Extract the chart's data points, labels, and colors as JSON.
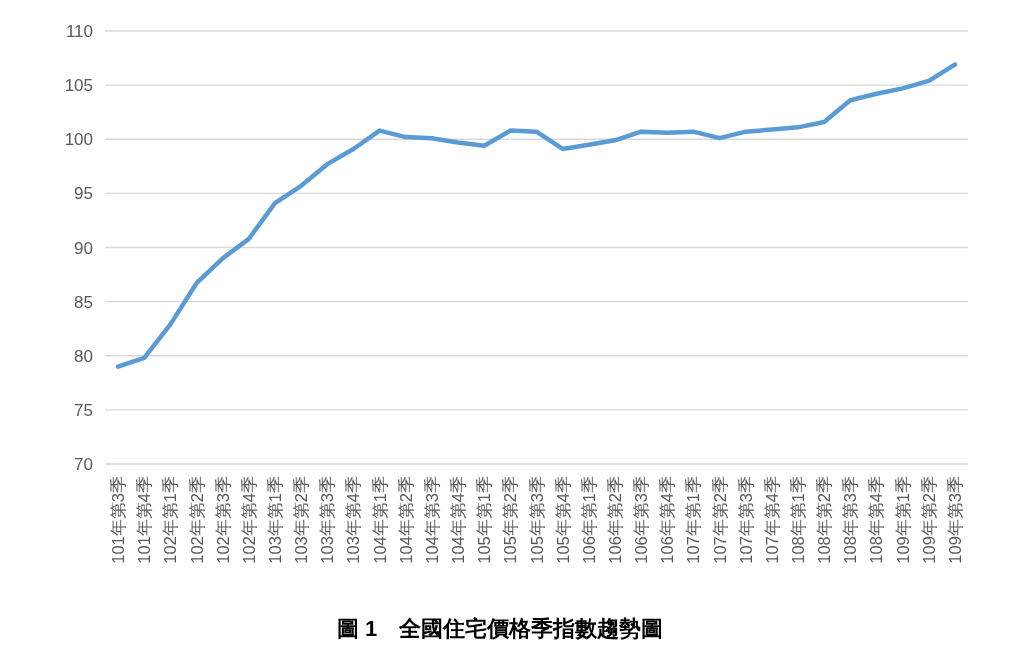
{
  "chart_data": {
    "type": "line",
    "title": "圖 1　全國住宅價格季指數趨勢圖",
    "categories": [
      "101年第3季",
      "101年第4季",
      "102年第1季",
      "102年第2季",
      "102年第3季",
      "102年第4季",
      "103年第1季",
      "103年第2季",
      "103年第3季",
      "103年第4季",
      "104年第1季",
      "104年第2季",
      "104年第3季",
      "104年第4季",
      "105年第1季",
      "105年第2季",
      "105年第3季",
      "105年第4季",
      "106年第1季",
      "106年第2季",
      "106年第3季",
      "106年第4季",
      "107年第1季",
      "107年第2季",
      "107年第3季",
      "107年第4季",
      "108年第1季",
      "108年第2季",
      "108年第3季",
      "108年第4季",
      "109年第1季",
      "109年第2季",
      "109年第3季"
    ],
    "series": [
      {
        "color": "#5b9bd5",
        "values": [
          79.0,
          79.8,
          82.9,
          86.7,
          89.0,
          90.8,
          94.1,
          95.7,
          97.7,
          99.1,
          100.8,
          100.2,
          100.1,
          99.7,
          99.4,
          100.8,
          100.7,
          99.1,
          99.5,
          99.9,
          100.7,
          100.6,
          100.7,
          100.1,
          100.7,
          100.9,
          101.1,
          101.6,
          103.6,
          104.2,
          104.7,
          105.4,
          106.9
        ]
      }
    ],
    "ylim": [
      70,
      110
    ],
    "yticks": [
      70,
      75,
      80,
      85,
      90,
      95,
      100,
      105,
      110
    ],
    "grid": "y",
    "marker": "none",
    "line_style": "solid"
  }
}
